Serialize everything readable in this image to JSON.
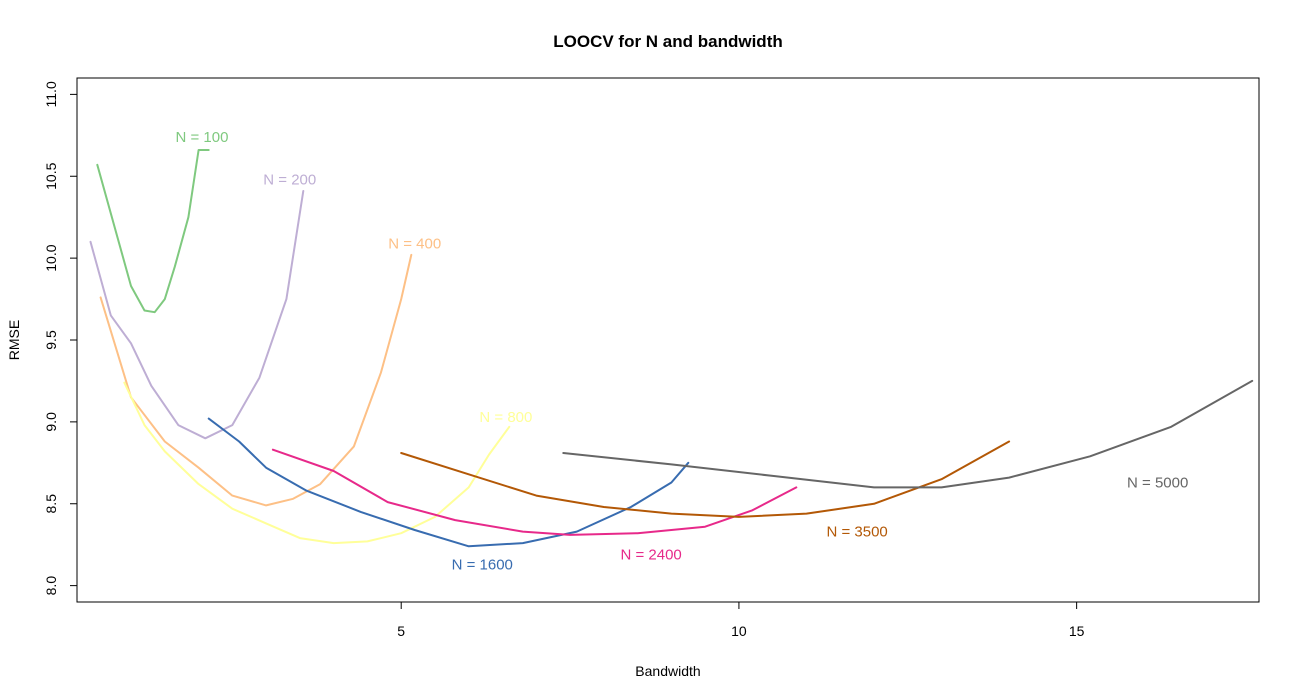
{
  "chart_data": {
    "type": "line",
    "title": "LOOCV for N and bandwidth",
    "xlabel": "Bandwidth",
    "ylabel": "RMSE",
    "xlim": [
      0.2,
      17.7
    ],
    "ylim": [
      7.9,
      11.1
    ],
    "xticks": [
      5,
      10,
      15
    ],
    "yticks": [
      8.0,
      8.5,
      9.0,
      9.5,
      10.0,
      10.5,
      11.0
    ],
    "grid": false,
    "legend": "none",
    "series": [
      {
        "name": "N = 100",
        "color": "#7fc97f",
        "label_at": [
          2.05,
          10.74
        ],
        "x": [
          0.5,
          1.0,
          1.2,
          1.35,
          1.5,
          1.65,
          1.85,
          2.0,
          2.15
        ],
        "y": [
          10.57,
          9.83,
          9.68,
          9.67,
          9.75,
          9.95,
          10.25,
          10.66,
          10.66
        ]
      },
      {
        "name": "N = 200",
        "color": "#beaed4",
        "label_at": [
          3.35,
          10.48
        ],
        "x": [
          0.4,
          0.7,
          1.0,
          1.3,
          1.7,
          2.1,
          2.5,
          2.9,
          3.3,
          3.55
        ],
        "y": [
          10.1,
          9.65,
          9.48,
          9.22,
          8.98,
          8.9,
          8.98,
          9.27,
          9.75,
          10.41
        ]
      },
      {
        "name": "N = 400",
        "color": "#fdc086",
        "label_at": [
          5.2,
          10.09
        ],
        "x": [
          0.55,
          1.0,
          1.5,
          2.0,
          2.5,
          3.0,
          3.4,
          3.8,
          4.3,
          4.7,
          5.0,
          5.15
        ],
        "y": [
          9.76,
          9.15,
          8.88,
          8.72,
          8.55,
          8.49,
          8.53,
          8.62,
          8.85,
          9.3,
          9.75,
          10.02
        ]
      },
      {
        "name": "N = 800",
        "color": "#ffff99",
        "label_at": [
          6.55,
          9.03
        ],
        "x": [
          0.9,
          1.2,
          1.5,
          2.0,
          2.5,
          3.0,
          3.5,
          4.0,
          4.5,
          5.0,
          5.5,
          6.0,
          6.3,
          6.6
        ],
        "y": [
          9.24,
          8.98,
          8.82,
          8.62,
          8.47,
          8.38,
          8.29,
          8.26,
          8.27,
          8.32,
          8.42,
          8.6,
          8.8,
          8.97
        ]
      },
      {
        "name": "N = 1600",
        "color": "#386cb0",
        "label_at": [
          6.2,
          8.13
        ],
        "x": [
          2.15,
          2.6,
          3.0,
          3.6,
          4.4,
          5.2,
          6.0,
          6.8,
          7.6,
          8.4,
          9.0,
          9.25
        ],
        "y": [
          9.02,
          8.88,
          8.72,
          8.58,
          8.45,
          8.34,
          8.24,
          8.26,
          8.33,
          8.48,
          8.63,
          8.75
        ]
      },
      {
        "name": "N = 2400",
        "color": "#e7298a",
        "label_at": [
          8.7,
          8.19
        ],
        "x": [
          3.1,
          4.0,
          4.8,
          5.8,
          6.8,
          7.5,
          8.5,
          9.5,
          10.2,
          10.85
        ],
        "y": [
          8.83,
          8.7,
          8.51,
          8.4,
          8.33,
          8.31,
          8.32,
          8.36,
          8.46,
          8.6
        ]
      },
      {
        "name": "N = 3500",
        "color": "#b35806",
        "label_at": [
          11.75,
          8.33
        ],
        "x": [
          5.0,
          6.0,
          7.0,
          8.0,
          9.0,
          10.0,
          11.0,
          12.0,
          13.0,
          14.0
        ],
        "y": [
          8.81,
          8.68,
          8.55,
          8.48,
          8.44,
          8.42,
          8.44,
          8.5,
          8.65,
          8.88
        ]
      },
      {
        "name": "N = 5000",
        "color": "#666666",
        "label_at": [
          16.2,
          8.63
        ],
        "x": [
          7.4,
          9.0,
          10.5,
          12.0,
          13.0,
          14.0,
          15.2,
          16.4,
          17.6
        ],
        "y": [
          8.81,
          8.74,
          8.67,
          8.6,
          8.6,
          8.66,
          8.79,
          8.97,
          9.25
        ]
      }
    ]
  }
}
